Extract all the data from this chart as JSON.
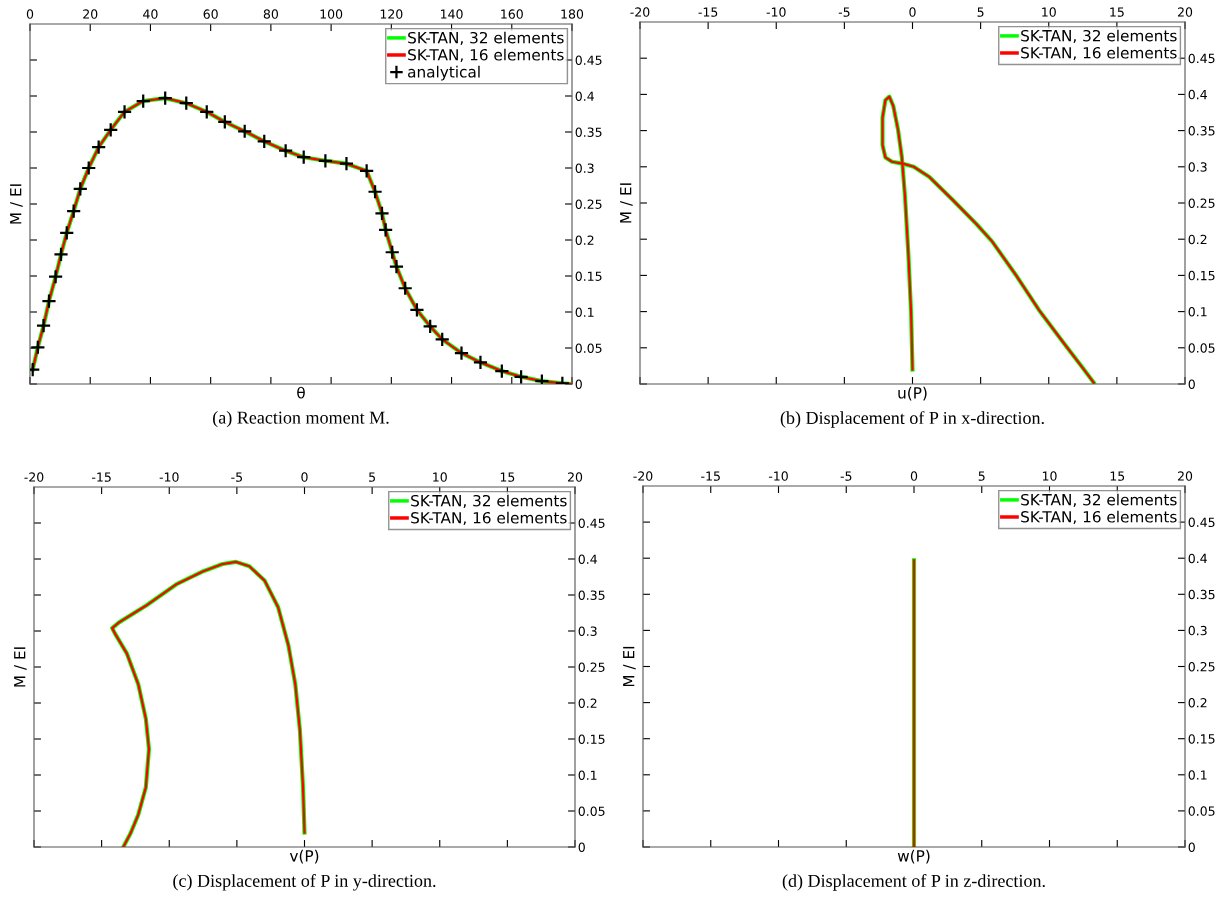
{
  "chart_data": [
    {
      "type": "line",
      "title": "(a) Reaction moment M.",
      "xlabel": "θ",
      "ylabel": "M / EI",
      "xlim": [
        0,
        180
      ],
      "xticks": [
        0,
        20,
        40,
        60,
        80,
        100,
        120,
        140,
        160,
        180
      ],
      "ylim": [
        0,
        0.5
      ],
      "yticks": [
        0,
        0.05,
        0.1,
        0.15,
        0.2,
        0.25,
        0.3,
        0.35,
        0.4,
        0.45
      ],
      "legend": "top right",
      "series": [
        {
          "name": "SK-TAN, 32 elements",
          "color": "#00ff00",
          "x": [
            0.9,
            2.6,
            4.5,
            6.3,
            8.5,
            10.3,
            12.2,
            14.5,
            16.7,
            19.5,
            22.8,
            26.8,
            31.4,
            37.6,
            44.9,
            51.9,
            58.7,
            64.7,
            71.3,
            77.8,
            84.9,
            90.9,
            98.1,
            105.1,
            111.8,
            114.6,
            116.9,
            118.1,
            120.3,
            121.7,
            124.6,
            128.5,
            132.9,
            136.9,
            143.3,
            149.6,
            156.7,
            163.1,
            170.0,
            176.8,
            180
          ],
          "values": [
            0.02,
            0.051,
            0.081,
            0.115,
            0.149,
            0.18,
            0.21,
            0.24,
            0.271,
            0.3,
            0.329,
            0.353,
            0.378,
            0.393,
            0.397,
            0.39,
            0.378,
            0.364,
            0.351,
            0.337,
            0.324,
            0.315,
            0.31,
            0.306,
            0.296,
            0.267,
            0.237,
            0.214,
            0.183,
            0.163,
            0.133,
            0.103,
            0.08,
            0.062,
            0.043,
            0.03,
            0.018,
            0.01,
            0.004,
            0.001,
            0.0
          ]
        },
        {
          "name": "SK-TAN, 16 elements",
          "color": "#ff0000",
          "x": [
            0.9,
            2.6,
            4.5,
            6.3,
            8.5,
            10.3,
            12.2,
            14.5,
            16.7,
            19.5,
            22.8,
            26.8,
            31.4,
            37.6,
            44.9,
            51.9,
            58.7,
            64.7,
            71.3,
            77.8,
            84.9,
            90.9,
            98.1,
            105.1,
            111.8,
            114.6,
            116.9,
            118.1,
            120.3,
            121.7,
            124.6,
            128.5,
            132.9,
            136.9,
            143.3,
            149.6,
            156.7,
            163.1,
            170.0,
            180
          ],
          "values": [
            0.02,
            0.051,
            0.081,
            0.115,
            0.149,
            0.18,
            0.21,
            0.24,
            0.271,
            0.3,
            0.329,
            0.353,
            0.378,
            0.393,
            0.397,
            0.39,
            0.378,
            0.364,
            0.351,
            0.337,
            0.324,
            0.315,
            0.31,
            0.306,
            0.296,
            0.267,
            0.237,
            0.214,
            0.183,
            0.163,
            0.133,
            0.103,
            0.08,
            0.062,
            0.043,
            0.03,
            0.018,
            0.01,
            0.004,
            0.0
          ]
        },
        {
          "name": "analytical",
          "type": "scatter",
          "marker": "cross",
          "color": "#000000",
          "x": [
            0.9,
            2.6,
            4.5,
            6.3,
            8.5,
            10.3,
            12.2,
            14.5,
            16.7,
            19.5,
            22.8,
            26.8,
            31.4,
            37.6,
            44.9,
            51.9,
            58.7,
            64.7,
            71.3,
            77.8,
            84.9,
            90.9,
            98.1,
            105.1,
            111.8,
            114.6,
            116.9,
            118.1,
            120.3,
            121.7,
            124.6,
            128.5,
            132.9,
            136.9,
            143.3,
            149.6,
            156.7,
            163.1,
            170.0,
            176.8
          ],
          "values": [
            0.02,
            0.051,
            0.081,
            0.115,
            0.149,
            0.18,
            0.21,
            0.24,
            0.271,
            0.3,
            0.329,
            0.353,
            0.378,
            0.393,
            0.397,
            0.39,
            0.378,
            0.364,
            0.351,
            0.337,
            0.324,
            0.315,
            0.31,
            0.306,
            0.296,
            0.267,
            0.237,
            0.214,
            0.183,
            0.163,
            0.133,
            0.103,
            0.08,
            0.062,
            0.043,
            0.03,
            0.018,
            0.01,
            0.004,
            0.001
          ]
        }
      ]
    },
    {
      "type": "line",
      "title": "(b) Displacement of P in x-direction.",
      "xlabel": "u(P)",
      "ylabel": "M / EI",
      "xlim": [
        -20,
        20
      ],
      "xticks": [
        -20,
        -15,
        -10,
        -5,
        0,
        5,
        10,
        15,
        20
      ],
      "ylim": [
        0,
        0.5
      ],
      "yticks": [
        0,
        0.05,
        0.1,
        0.15,
        0.2,
        0.25,
        0.3,
        0.35,
        0.4,
        0.45
      ],
      "legend": "top right",
      "series": [
        {
          "name": "SK-TAN, 32 elements",
          "color": "#00ff00",
          "x": [
            0,
            -0.1,
            -0.3,
            -0.55,
            -0.78,
            -1.06,
            -1.41,
            -1.7,
            -1.99,
            -2.2,
            -2.2,
            -1.99,
            -1.5,
            -0.63,
            0.09,
            1.24,
            2.96,
            4.69,
            5.84,
            7.57,
            9.29,
            11.0,
            12.46,
            13.3
          ],
          "values": [
            0.02,
            0.097,
            0.178,
            0.259,
            0.313,
            0.351,
            0.384,
            0.397,
            0.392,
            0.368,
            0.33,
            0.313,
            0.307,
            0.304,
            0.3,
            0.286,
            0.254,
            0.221,
            0.197,
            0.151,
            0.102,
            0.059,
            0.023,
            0.002
          ]
        },
        {
          "name": "SK-TAN, 16 elements",
          "color": "#ff0000",
          "x": [
            0,
            -0.1,
            -0.3,
            -0.55,
            -0.78,
            -1.06,
            -1.41,
            -1.7,
            -1.99,
            -2.2,
            -2.2,
            -1.99,
            -1.5,
            -0.63,
            0.09,
            1.24,
            2.96,
            4.69,
            5.84,
            7.57,
            9.29,
            11.0,
            12.46,
            13.3
          ],
          "values": [
            0.02,
            0.097,
            0.178,
            0.259,
            0.313,
            0.351,
            0.384,
            0.397,
            0.392,
            0.368,
            0.33,
            0.313,
            0.307,
            0.304,
            0.3,
            0.286,
            0.254,
            0.221,
            0.197,
            0.151,
            0.102,
            0.059,
            0.023,
            0.002
          ]
        }
      ]
    },
    {
      "type": "line",
      "title": "(c) Displacement of P in y-direction.",
      "xlabel": "v(P)",
      "ylabel": "M / EI",
      "xlim": [
        -20,
        20
      ],
      "xticks": [
        -20,
        -15,
        -10,
        -5,
        0,
        5,
        10,
        15,
        20
      ],
      "ylim": [
        0,
        0.5
      ],
      "yticks": [
        0,
        0.05,
        0.1,
        0.15,
        0.2,
        0.25,
        0.3,
        0.35,
        0.4,
        0.45
      ],
      "legend": "top right",
      "series": [
        {
          "name": "SK-TAN, 32 elements",
          "color": "#00ff00",
          "x": [
            0,
            -0.11,
            -0.34,
            -0.68,
            -1.19,
            -1.95,
            -2.95,
            -4.08,
            -5.07,
            -6.06,
            -7.48,
            -9.46,
            -11.73,
            -13.71,
            -14.22,
            -14.0,
            -13.14,
            -12.29,
            -11.73,
            -11.5,
            -11.73,
            -12.29,
            -12.86,
            -13.37
          ],
          "values": [
            0.02,
            0.083,
            0.162,
            0.226,
            0.28,
            0.333,
            0.37,
            0.39,
            0.396,
            0.393,
            0.383,
            0.365,
            0.335,
            0.312,
            0.304,
            0.296,
            0.269,
            0.226,
            0.178,
            0.136,
            0.083,
            0.045,
            0.019,
            0.001
          ]
        },
        {
          "name": "SK-TAN, 16 elements",
          "color": "#ff0000",
          "x": [
            0,
            -0.11,
            -0.34,
            -0.68,
            -1.19,
            -1.95,
            -2.95,
            -4.08,
            -5.07,
            -6.06,
            -7.48,
            -9.46,
            -11.73,
            -13.71,
            -14.22,
            -14.0,
            -13.14,
            -12.29,
            -11.73,
            -11.5,
            -11.73,
            -12.29,
            -12.86,
            -13.37
          ],
          "values": [
            0.02,
            0.083,
            0.162,
            0.226,
            0.28,
            0.333,
            0.37,
            0.39,
            0.396,
            0.393,
            0.383,
            0.365,
            0.335,
            0.312,
            0.304,
            0.296,
            0.269,
            0.226,
            0.178,
            0.136,
            0.083,
            0.045,
            0.019,
            0.001
          ]
        }
      ]
    },
    {
      "type": "line",
      "title": "(d) Displacement of P in z-direction.",
      "xlabel": "w(P)",
      "ylabel": "M / EI",
      "xlim": [
        -20,
        20
      ],
      "xticks": [
        -20,
        -15,
        -10,
        -5,
        0,
        5,
        10,
        15,
        20
      ],
      "ylim": [
        0,
        0.5
      ],
      "yticks": [
        0,
        0.05,
        0.1,
        0.15,
        0.2,
        0.25,
        0.3,
        0.35,
        0.4,
        0.45
      ],
      "legend": "top right",
      "series": [
        {
          "name": "SK-TAN, 32 elements",
          "color": "#00ff00",
          "x": [
            0,
            0
          ],
          "values": [
            0.0,
            0.397
          ]
        },
        {
          "name": "SK-TAN, 16 elements",
          "color": "#ff0000",
          "x": [
            0,
            0
          ],
          "values": [
            0.0,
            0.397
          ]
        }
      ]
    }
  ]
}
